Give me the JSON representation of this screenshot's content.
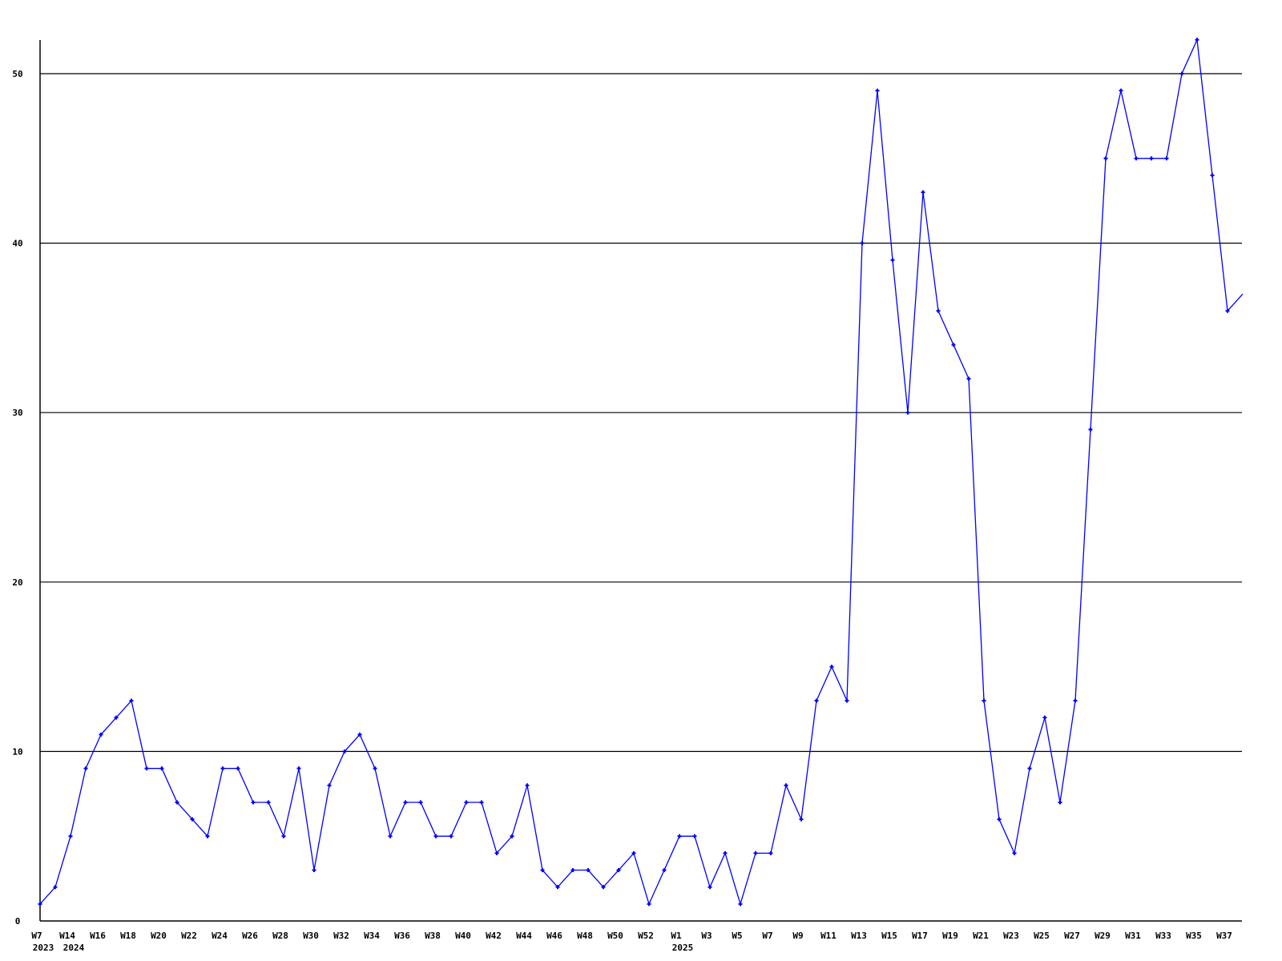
{
  "chart_data": {
    "type": "line",
    "title": "",
    "xlabel": "",
    "ylabel": "",
    "ylim": [
      0,
      52
    ],
    "yticks": [
      0,
      10,
      20,
      30,
      40,
      50
    ],
    "grid": "horizontal",
    "line_color": "#0000ff",
    "categories": [
      "W7",
      "",
      "W14",
      "",
      "W16",
      "",
      "W18",
      "",
      "W20",
      "",
      "W22",
      "",
      "W24",
      "",
      "W26",
      "",
      "W28",
      "",
      "W30",
      "",
      "W32",
      "",
      "W34",
      "",
      "W36",
      "",
      "W38",
      "",
      "W40",
      "",
      "W42",
      "",
      "W44",
      "",
      "W46",
      "",
      "W48",
      "",
      "W50",
      "",
      "W52",
      "",
      "W1",
      "",
      "W3",
      "",
      "W5",
      "",
      "W7",
      "",
      "W9",
      "",
      "W11",
      "",
      "W13",
      "",
      "W15",
      "",
      "W17",
      "",
      "W19",
      "",
      "W21",
      "",
      "W23",
      "",
      "W25",
      "",
      "W27",
      "",
      "W29",
      "",
      "W31",
      "",
      "W33",
      "",
      "W35",
      "",
      "W37",
      ""
    ],
    "year_labels": [
      {
        "index": 0,
        "label": "2023"
      },
      {
        "index": 2,
        "label": "2024"
      },
      {
        "index": 42,
        "label": "2025"
      }
    ],
    "values": [
      1,
      2,
      5,
      9,
      11,
      12,
      13,
      9,
      9,
      7,
      6,
      5,
      9,
      9,
      7,
      7,
      5,
      9,
      3,
      8,
      10,
      11,
      9,
      5,
      7,
      7,
      5,
      5,
      7,
      7,
      4,
      5,
      8,
      3,
      2,
      3,
      3,
      2,
      3,
      4,
      1,
      3,
      5,
      5,
      2,
      4,
      1,
      4,
      4,
      8,
      6,
      13,
      15,
      13,
      40,
      49,
      39,
      30,
      43,
      36,
      34,
      32,
      13,
      6,
      4,
      9,
      12,
      7,
      13,
      29,
      45,
      49,
      45,
      45,
      45,
      50,
      52,
      44,
      36,
      37
    ]
  }
}
